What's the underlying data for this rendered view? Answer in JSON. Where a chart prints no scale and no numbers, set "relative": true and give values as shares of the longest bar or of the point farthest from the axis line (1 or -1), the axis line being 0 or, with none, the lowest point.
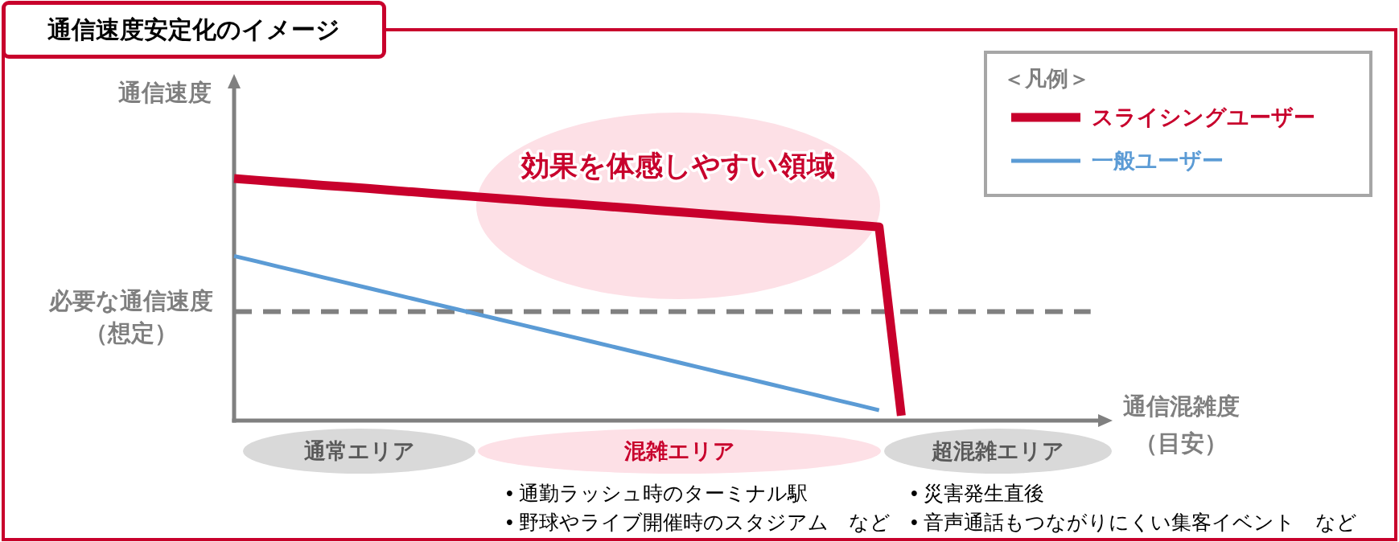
{
  "chart_data": {
    "type": "line",
    "title": "通信速度安定化のイメージ",
    "ylabel": "通信速度",
    "xlabel": "通信混雑度（目安）",
    "legend_title": "＜凡例＞",
    "legend": "top right",
    "relative": true,
    "categories": [
      null,
      null,
      null,
      null,
      null,
      null,
      null,
      null,
      null,
      null,
      null,
      null,
      null,
      null,
      null,
      null,
      null,
      null,
      null,
      null,
      null,
      null,
      null,
      null,
      null,
      null,
      null,
      null,
      null,
      null,
      null,
      null,
      null,
      null,
      null,
      null,
      null,
      null,
      null,
      null
    ],
    "series": [
      {
        "name": "スライシングユーザー",
        "color": "#c8002c",
        "values": [
          1.0,
          0.993,
          0.986,
          0.979,
          0.972,
          0.966,
          0.959,
          0.952,
          0.945,
          0.938,
          0.931,
          0.924,
          0.917,
          0.91,
          0.903,
          0.897,
          0.89,
          0.883,
          0.876,
          0.869,
          0.862,
          0.855,
          0.848,
          0.841,
          0.834,
          0.828,
          0.821,
          0.814,
          0.807,
          0.8,
          0.02,
          null,
          null,
          null,
          null,
          null,
          null,
          null,
          null,
          null
        ]
      },
      {
        "name": "一般ユーザー",
        "color": "#5b9bd5",
        "values": [
          0.68,
          0.658,
          0.636,
          0.614,
          0.592,
          0.57,
          0.548,
          0.526,
          0.504,
          0.482,
          0.46,
          0.438,
          0.416,
          0.394,
          0.372,
          0.35,
          0.328,
          0.306,
          0.284,
          0.262,
          0.24,
          0.218,
          0.196,
          0.175,
          0.153,
          0.131,
          0.109,
          0.087,
          0.065,
          0.043,
          null,
          null,
          null,
          null,
          null,
          null,
          null,
          null,
          null,
          null
        ]
      }
    ],
    "ref_lines": [
      {
        "axis": "y",
        "value": 0.45,
        "label": "必要な通信速度（想定）",
        "color": "#808080",
        "line_style": "dashed"
      }
    ],
    "annotations": [
      "効果を体感しやすい領域",
      "通常エリア",
      "混雑エリア",
      "超混雑エリア",
      "• 通勤ラッシュ時のターミナル駅\n• 野球やライブ開催時のスタジアム　など",
      "• 災害発生直後\n• 音声通話もつながりにくい集客イベント　など"
    ]
  }
}
